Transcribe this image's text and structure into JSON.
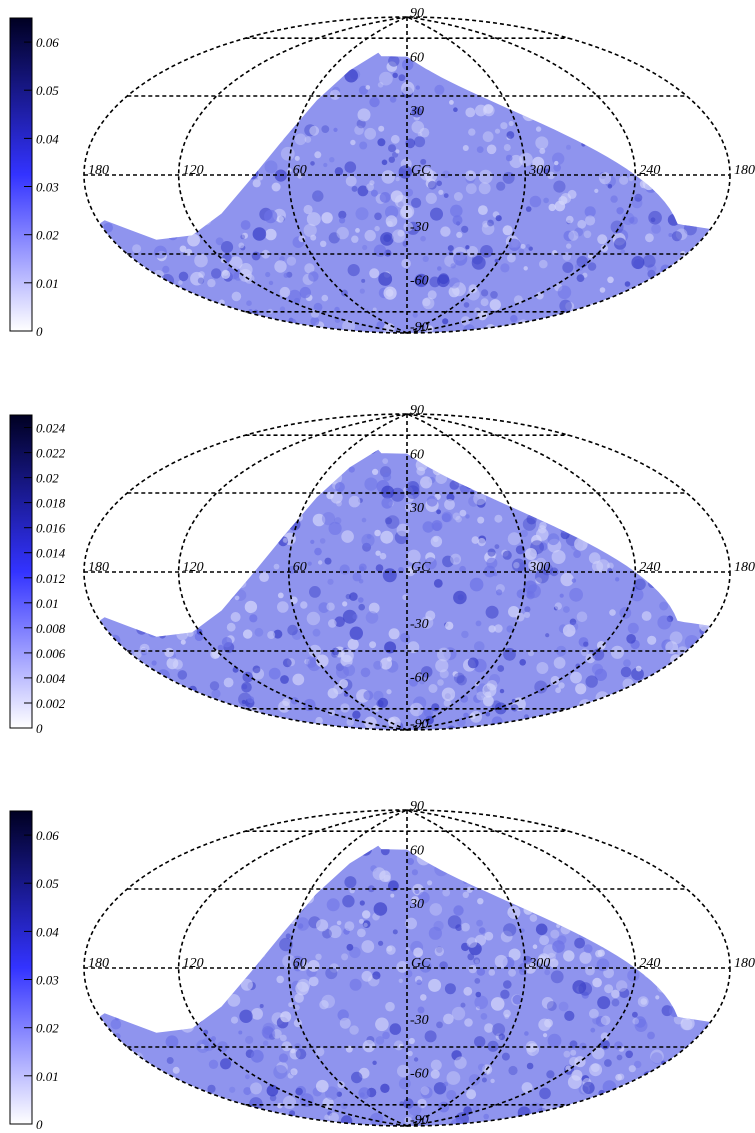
{
  "chart_data": [
    {
      "type": "heatmap",
      "projection": "Aitoff/Hammer all-sky, Galactic coordinates",
      "colorbar": {
        "min": 0,
        "max": 0.065,
        "ticks": [
          0,
          0.01,
          0.02,
          0.03,
          0.04,
          0.05,
          0.06
        ],
        "tick_labels": [
          "0",
          "0.01",
          "0.02",
          "0.03",
          "0.04",
          "0.05",
          "0.06"
        ],
        "colors": [
          "#ffffff",
          "#3333ff",
          "#000022"
        ]
      },
      "longitude_labels": [
        "180",
        "120",
        "60",
        "GC",
        "300",
        "240",
        "180"
      ],
      "latitude_labels": [
        "90",
        "60",
        "30",
        "-30",
        "-60",
        "-90"
      ],
      "grid": true,
      "coverage": "sky map with empty region at upper-left (Galactic north, l 60-180)"
    },
    {
      "type": "heatmap",
      "projection": "Aitoff/Hammer all-sky, Galactic coordinates",
      "colorbar": {
        "min": 0,
        "max": 0.025,
        "ticks": [
          0,
          0.002,
          0.004,
          0.006,
          0.008,
          0.01,
          0.012,
          0.014,
          0.016,
          0.018,
          0.02,
          0.022,
          0.024
        ],
        "tick_labels": [
          "0",
          "0.002",
          "0.004",
          "0.006",
          "0.008",
          "0.01",
          "0.012",
          "0.014",
          "0.016",
          "0.018",
          "0.02",
          "0.022",
          "0.024"
        ],
        "colors": [
          "#ffffff",
          "#3333ff",
          "#000022"
        ]
      },
      "longitude_labels": [
        "180",
        "120",
        "60",
        "GC",
        "300",
        "240",
        "180"
      ],
      "latitude_labels": [
        "90",
        "60",
        "30",
        "-30",
        "-60",
        "-90"
      ],
      "grid": true,
      "coverage": "sky map with empty region at upper-left (Galactic north, l 60-180)"
    },
    {
      "type": "heatmap",
      "projection": "Aitoff/Hammer all-sky, Galactic coordinates",
      "colorbar": {
        "min": 0,
        "max": 0.065,
        "ticks": [
          0,
          0.01,
          0.02,
          0.03,
          0.04,
          0.05,
          0.06
        ],
        "tick_labels": [
          "0",
          "0.01",
          "0.02",
          "0.03",
          "0.04",
          "0.05",
          "0.06"
        ],
        "colors": [
          "#ffffff",
          "#3333ff",
          "#000022"
        ]
      },
      "longitude_labels": [
        "180",
        "120",
        "60",
        "GC",
        "300",
        "240",
        "180"
      ],
      "latitude_labels": [
        "90",
        "60",
        "30",
        "-30",
        "-60",
        "-90"
      ],
      "grid": true,
      "coverage": "sky map with empty region at upper-left (Galactic north, l 60-180)"
    }
  ]
}
